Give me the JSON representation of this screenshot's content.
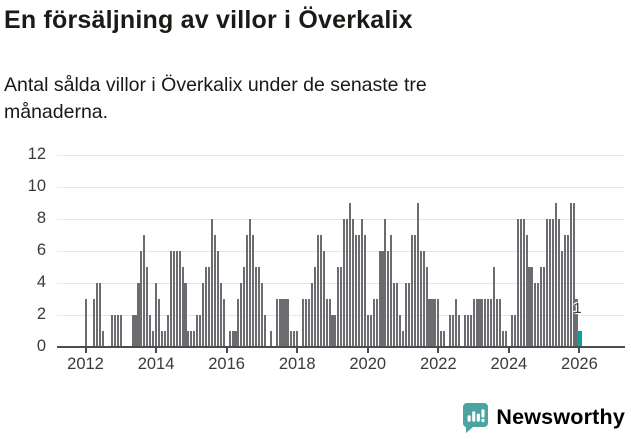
{
  "title": "En försäljning av villor i Överkalix",
  "subtitle_lines": [
    "Antal sålda villor i Överkalix under de senaste tre",
    "månaderna."
  ],
  "branding": {
    "logo_text": "Newsworthy",
    "logo_icon": "speech-bubble-bar-chart",
    "brand_color": "#4aa5a2"
  },
  "chart_data": {
    "type": "bar",
    "title": "En försäljning av villor i Överkalix",
    "ylabel": "",
    "xlabel": "",
    "x_unit": "month",
    "x_start": "2012-01",
    "x_end": "2026-01",
    "x_tick_labels": [
      "2012",
      "2014",
      "2016",
      "2018",
      "2020",
      "2022",
      "2024",
      "2026"
    ],
    "y_ticks": [
      0,
      2,
      4,
      6,
      8,
      10,
      12
    ],
    "ylim": [
      0,
      12
    ],
    "grid": true,
    "bar_color": "#6b6b70",
    "highlight_color": "#0aa29f",
    "axis_color": "#4c4c4c",
    "highlight_last": true,
    "last_value_label": "1",
    "values": [
      3,
      0,
      0,
      3,
      4,
      4,
      1,
      0,
      0,
      2,
      2,
      2,
      2,
      0,
      0,
      0,
      2,
      2,
      4,
      6,
      7,
      5,
      2,
      1,
      4,
      3,
      1,
      1,
      2,
      6,
      6,
      6,
      6,
      5,
      4,
      1,
      1,
      1,
      2,
      2,
      4,
      5,
      5,
      8,
      7,
      6,
      4,
      3,
      0,
      1,
      1,
      1,
      3,
      4,
      5,
      7,
      8,
      7,
      5,
      5,
      4,
      2,
      0,
      1,
      0,
      3,
      3,
      3,
      3,
      3,
      1,
      1,
      1,
      0,
      3,
      3,
      3,
      4,
      5,
      7,
      7,
      6,
      3,
      3,
      2,
      2,
      5,
      5,
      8,
      8,
      9,
      8,
      7,
      7,
      8,
      7,
      2,
      2,
      3,
      3,
      6,
      6,
      8,
      6,
      7,
      4,
      4,
      2,
      1,
      4,
      4,
      7,
      7,
      9,
      6,
      6,
      5,
      3,
      3,
      3,
      3,
      1,
      1,
      0,
      2,
      2,
      3,
      2,
      0,
      2,
      2,
      2,
      3,
      3,
      3,
      3,
      3,
      3,
      3,
      5,
      3,
      3,
      1,
      1,
      0,
      2,
      2,
      8,
      8,
      8,
      7,
      5,
      5,
      4,
      4,
      5,
      5,
      8,
      8,
      8,
      9,
      8,
      6,
      7,
      7,
      9,
      9,
      3,
      1
    ]
  }
}
